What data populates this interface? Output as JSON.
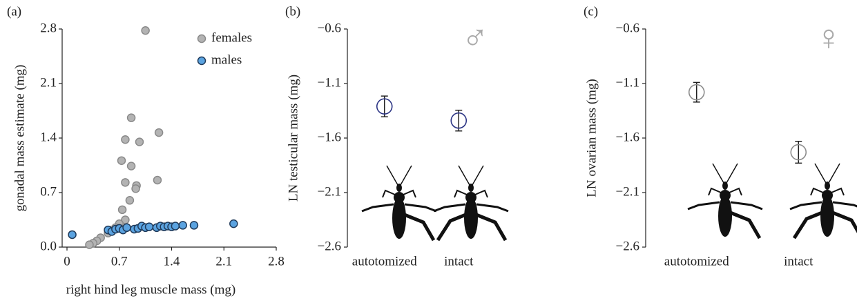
{
  "chart_data": [
    {
      "type": "scatter",
      "panel": "(a)",
      "xlabel": "right hind leg muscle mass (mg)",
      "ylabel": "gonadal mass estimate (mg)",
      "xlim": [
        0,
        2.8
      ],
      "ylim": [
        0,
        2.8
      ],
      "xticks": [
        0,
        0.7,
        1.4,
        2.1,
        2.8
      ],
      "yticks": [
        {
          "value": 0,
          "label": "0.0"
        },
        0.7,
        1.4,
        2.1,
        2.8
      ],
      "legend": "upper right",
      "series": [
        {
          "name": "females",
          "color": "#b3b3b3",
          "edgecolor": "#8a8a8a",
          "x": [
            1.05,
            0.86,
            0.78,
            0.97,
            0.73,
            0.86,
            1.23,
            1.21,
            0.78,
            0.93,
            0.92,
            0.84,
            0.74,
            0.78,
            0.7,
            0.65,
            0.6,
            0.55,
            0.45,
            0.4,
            0.35,
            0.3
          ],
          "values": [
            2.78,
            1.66,
            1.38,
            1.35,
            1.11,
            1.04,
            1.47,
            0.86,
            0.83,
            0.79,
            0.75,
            0.6,
            0.48,
            0.35,
            0.3,
            0.25,
            0.22,
            0.18,
            0.12,
            0.08,
            0.05,
            0.03
          ]
        },
        {
          "name": "males",
          "color": "#5ba3e0",
          "edgecolor": "#1f3a5a",
          "x": [
            0.07,
            0.55,
            0.6,
            0.65,
            0.7,
            0.75,
            0.8,
            0.9,
            0.95,
            1.0,
            1.05,
            1.1,
            1.2,
            1.25,
            1.3,
            1.35,
            1.4,
            1.45,
            1.55,
            1.7,
            2.23
          ],
          "values": [
            0.16,
            0.22,
            0.2,
            0.23,
            0.24,
            0.22,
            0.25,
            0.23,
            0.24,
            0.27,
            0.25,
            0.26,
            0.25,
            0.27,
            0.26,
            0.27,
            0.26,
            0.27,
            0.28,
            0.28,
            0.3
          ]
        }
      ]
    },
    {
      "type": "errorpoint",
      "panel": "(b)",
      "ylabel": "LN testicular mass (mg)",
      "annotation": "♂",
      "categories": [
        "autotomized",
        "intact"
      ],
      "values": [
        -1.31,
        -1.44
      ],
      "errors": [
        0.095,
        0.095
      ],
      "color": "#2b3484",
      "ylim": [
        -2.6,
        -0.6
      ],
      "yticks": [
        {
          "value": -0.6,
          "label": "−0.6"
        },
        {
          "value": -1.1,
          "label": "−1.1"
        },
        {
          "value": -1.6,
          "label": "−1.6"
        },
        {
          "value": -2.1,
          "label": "−2.1"
        },
        {
          "value": -2.6,
          "label": "−2.6"
        }
      ]
    },
    {
      "type": "errorpoint",
      "panel": "(c)",
      "ylabel": "LN ovarian mass (mg)",
      "annotation": "♀",
      "categories": [
        "autotomized",
        "intact"
      ],
      "values": [
        -1.18,
        -1.73
      ],
      "errors": [
        0.09,
        0.1
      ],
      "color": "#8c8c8c",
      "ylim": [
        -2.6,
        -0.6
      ],
      "yticks": [
        {
          "value": -0.6,
          "label": "−0.6"
        },
        {
          "value": -1.1,
          "label": "−1.1"
        },
        {
          "value": -1.6,
          "label": "−1.6"
        },
        {
          "value": -2.1,
          "label": "−2.1"
        },
        {
          "value": -2.6,
          "label": "−2.6"
        }
      ]
    }
  ]
}
